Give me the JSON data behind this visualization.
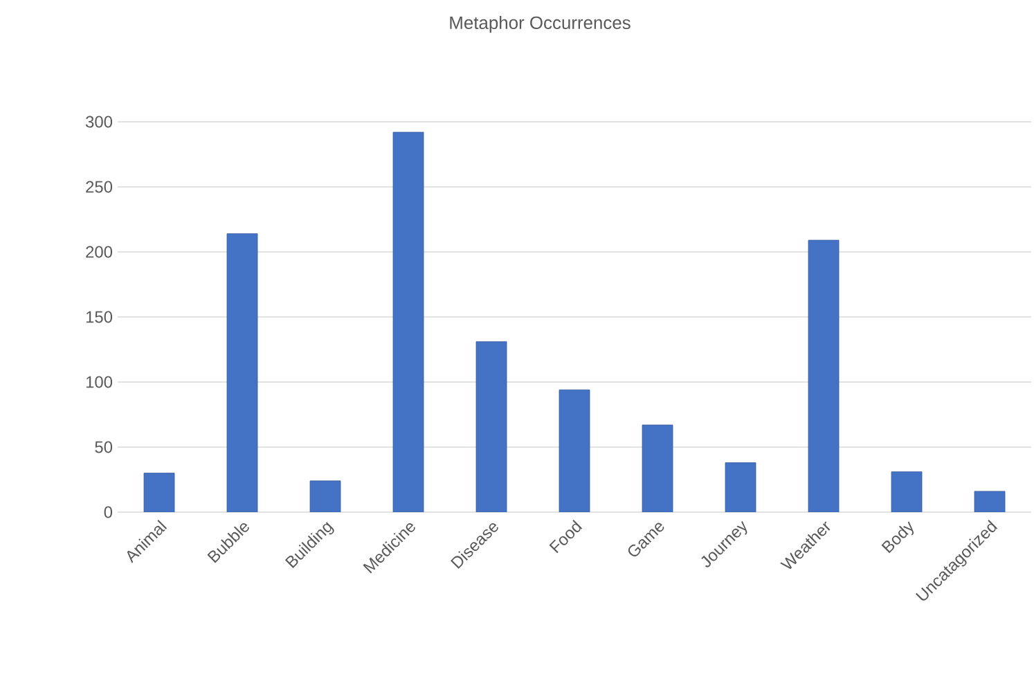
{
  "chart_data": {
    "type": "bar",
    "title": "Metaphor Occurrences",
    "categories": [
      "Animal",
      "Bubble",
      "Building",
      "Medicine",
      "Disease",
      "Food",
      "Game",
      "Journey",
      "Weather",
      "Body",
      "Uncatagorized"
    ],
    "values": [
      30,
      214,
      24,
      292,
      131,
      94,
      67,
      38,
      209,
      31,
      16
    ],
    "color": "#4472c4",
    "ylim": [
      0,
      300
    ],
    "yticks": [
      0,
      50,
      100,
      150,
      200,
      250,
      300
    ],
    "grid": "y"
  }
}
